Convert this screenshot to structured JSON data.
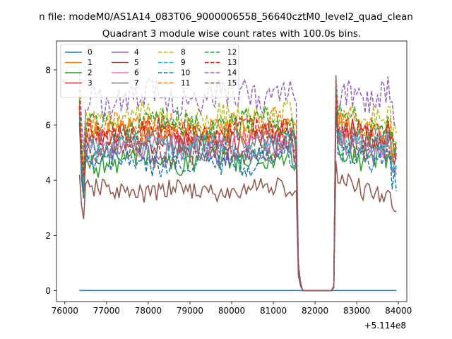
{
  "chart_data": {
    "type": "line",
    "suptitle": "n file: modeM0/AS1A14_083T06_9000006558_56640cztM0_level2_quad_clean",
    "title": "Quadrant 3 module wise count rates with 100.0s bins.",
    "xlabel": "",
    "ylabel": "",
    "offset_text": "+5.114e8",
    "xlim": [
      75800,
      84200
    ],
    "ylim": [
      -0.4,
      9.05
    ],
    "x_ticks": [
      76000,
      77000,
      78000,
      79000,
      80000,
      81000,
      82000,
      83000,
      84000
    ],
    "x_tick_labels": [
      "76000",
      "77000",
      "78000",
      "79000",
      "80000",
      "81000",
      "82000",
      "83000",
      "84000"
    ],
    "y_ticks": [
      0,
      2,
      4,
      6,
      8
    ],
    "y_tick_labels": [
      "0",
      "2",
      "4",
      "6",
      "8"
    ],
    "legend": {
      "position": "upper-left",
      "columns": 4
    },
    "x_start": 76350,
    "x_step": 50,
    "gap": {
      "from": 81700,
      "to": 82400,
      "fall_points": [
        81600,
        81650
      ],
      "rise_points": [
        82450,
        82500
      ]
    },
    "series": [
      {
        "name": "0",
        "color": "#1f77b4",
        "dash": "solid",
        "level": 0.0,
        "start": 0.0,
        "restart": 0.0,
        "amp": 0.0
      },
      {
        "name": "1",
        "color": "#ff7f0e",
        "dash": "solid",
        "level": 5.8,
        "start": 7.0,
        "restart": 7.8,
        "amp": 0.5
      },
      {
        "name": "2",
        "color": "#2ca02c",
        "dash": "solid",
        "level": 4.7,
        "start": 6.7,
        "restart": 7.2,
        "amp": 0.45
      },
      {
        "name": "3",
        "color": "#d62728",
        "dash": "solid",
        "level": 5.5,
        "start": 6.6,
        "restart": 7.2,
        "amp": 0.45
      },
      {
        "name": "4",
        "color": "#9467bd",
        "dash": "solid",
        "level": 5.0,
        "start": 6.4,
        "restart": 6.9,
        "amp": 0.45
      },
      {
        "name": "5",
        "color": "#8c564b",
        "dash": "solid",
        "level": 3.6,
        "start": 4.2,
        "restart": 4.7,
        "amp": 0.35
      },
      {
        "name": "6",
        "color": "#e377c2",
        "dash": "solid",
        "level": 5.3,
        "start": 6.5,
        "restart": 7.0,
        "amp": 0.45
      },
      {
        "name": "7",
        "color": "#7f7f7f",
        "dash": "solid",
        "level": 5.4,
        "start": 6.6,
        "restart": 7.1,
        "amp": 0.45
      },
      {
        "name": "8",
        "color": "#bcbd22",
        "dash": "dashed",
        "level": 6.2,
        "start": 7.3,
        "restart": 7.8,
        "amp": 0.5
      },
      {
        "name": "9",
        "color": "#17becf",
        "dash": "dashed",
        "level": 5.2,
        "start": 6.3,
        "restart": 6.8,
        "amp": 0.45
      },
      {
        "name": "10",
        "color": "#1f77b4",
        "dash": "dashed",
        "level": 4.6,
        "start": 6.1,
        "restart": 6.6,
        "amp": 0.4
      },
      {
        "name": "11",
        "color": "#ff7f0e",
        "dash": "dashed",
        "level": 5.9,
        "start": 6.8,
        "restart": 7.3,
        "amp": 0.5
      },
      {
        "name": "12",
        "color": "#2ca02c",
        "dash": "dashed",
        "level": 6.0,
        "start": 6.9,
        "restart": 7.4,
        "amp": 0.5
      },
      {
        "name": "13",
        "color": "#d62728",
        "dash": "dashed",
        "level": 5.7,
        "start": 6.7,
        "restart": 7.1,
        "amp": 0.45
      },
      {
        "name": "14",
        "color": "#9467bd",
        "dash": "dashed",
        "level": 7.0,
        "start": 7.9,
        "restart": 7.8,
        "amp": 0.6
      },
      {
        "name": "15",
        "color": "#8c564b",
        "dash": "dashed",
        "level": 5.0,
        "start": 6.0,
        "restart": 6.5,
        "amp": 0.45
      }
    ]
  }
}
